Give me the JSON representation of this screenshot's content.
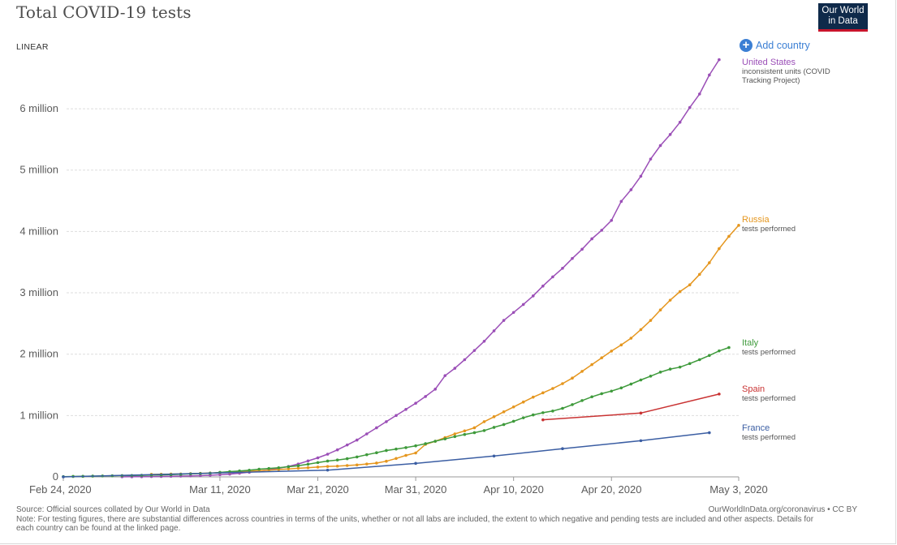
{
  "title": "Total COVID-19 tests",
  "logo": {
    "line1": "Our World",
    "line2": "in Data"
  },
  "scale_toggle": "LINEAR",
  "add_country": "Add country",
  "footer": {
    "source": "Source: Official sources collated by Our World in Data",
    "note": "Note: For testing figures, there are substantial differences across countries in terms of the units, whether or not all labs are included, the extent to which negative and pending tests are included and other aspects. Details for each country can be found at the linked page.",
    "credit": "OurWorldInData.org/coronavirus • CC BY"
  },
  "colors": {
    "grid": "#dddddd",
    "axis": "#999999",
    "text": "#5b5b5b",
    "background": "#ffffff"
  },
  "chart_data": {
    "type": "line",
    "title": "Total COVID-19 tests",
    "xlabel": "",
    "ylabel": "",
    "x_type": "date",
    "x_range": [
      "2020-02-24",
      "2020-05-03"
    ],
    "ylim": [
      0,
      6900000
    ],
    "x_ticks": [
      {
        "date": "2020-02-24",
        "label": "Feb 24, 2020"
      },
      {
        "date": "2020-03-11",
        "label": "Mar 11, 2020"
      },
      {
        "date": "2020-03-21",
        "label": "Mar 21, 2020"
      },
      {
        "date": "2020-03-31",
        "label": "Mar 31, 2020"
      },
      {
        "date": "2020-04-10",
        "label": "Apr 10, 2020"
      },
      {
        "date": "2020-04-20",
        "label": "Apr 20, 2020"
      },
      {
        "date": "2020-05-03",
        "label": "May 3, 2020"
      }
    ],
    "y_ticks": [
      {
        "value": 0,
        "label": "0"
      },
      {
        "value": 1000000,
        "label": "1 million"
      },
      {
        "value": 2000000,
        "label": "2 million"
      },
      {
        "value": 3000000,
        "label": "3 million"
      },
      {
        "value": 4000000,
        "label": "4 million"
      },
      {
        "value": 5000000,
        "label": "5 million"
      },
      {
        "value": 6000000,
        "label": "6 million"
      }
    ],
    "grid": true,
    "legend": "right-inline",
    "series": [
      {
        "name": "United States",
        "subtitle": "inconsistent units (COVID Tracking Project)",
        "color": "#9b4fb7",
        "points": [
          [
            "2020-03-01",
            1000
          ],
          [
            "2020-03-02",
            2000
          ],
          [
            "2020-03-03",
            3000
          ],
          [
            "2020-03-04",
            5000
          ],
          [
            "2020-03-05",
            7000
          ],
          [
            "2020-03-06",
            10000
          ],
          [
            "2020-03-07",
            13000
          ],
          [
            "2020-03-08",
            16000
          ],
          [
            "2020-03-09",
            20000
          ],
          [
            "2020-03-10",
            27000
          ],
          [
            "2020-03-11",
            35000
          ],
          [
            "2020-03-12",
            45000
          ],
          [
            "2020-03-13",
            60000
          ],
          [
            "2020-03-14",
            75000
          ],
          [
            "2020-03-15",
            95000
          ],
          [
            "2020-03-16",
            115000
          ],
          [
            "2020-03-17",
            140000
          ],
          [
            "2020-03-18",
            170000
          ],
          [
            "2020-03-19",
            210000
          ],
          [
            "2020-03-20",
            260000
          ],
          [
            "2020-03-21",
            310000
          ],
          [
            "2020-03-22",
            370000
          ],
          [
            "2020-03-23",
            440000
          ],
          [
            "2020-03-24",
            520000
          ],
          [
            "2020-03-25",
            600000
          ],
          [
            "2020-03-26",
            700000
          ],
          [
            "2020-03-27",
            800000
          ],
          [
            "2020-03-28",
            900000
          ],
          [
            "2020-03-29",
            1000000
          ],
          [
            "2020-03-30",
            1100000
          ],
          [
            "2020-03-31",
            1200000
          ],
          [
            "2020-04-01",
            1310000
          ],
          [
            "2020-04-02",
            1430000
          ],
          [
            "2020-04-03",
            1650000
          ],
          [
            "2020-04-04",
            1770000
          ],
          [
            "2020-04-05",
            1910000
          ],
          [
            "2020-04-06",
            2060000
          ],
          [
            "2020-04-07",
            2210000
          ],
          [
            "2020-04-08",
            2380000
          ],
          [
            "2020-04-09",
            2550000
          ],
          [
            "2020-04-10",
            2680000
          ],
          [
            "2020-04-11",
            2810000
          ],
          [
            "2020-04-12",
            2950000
          ],
          [
            "2020-04-13",
            3110000
          ],
          [
            "2020-04-14",
            3260000
          ],
          [
            "2020-04-15",
            3400000
          ],
          [
            "2020-04-16",
            3560000
          ],
          [
            "2020-04-17",
            3710000
          ],
          [
            "2020-04-18",
            3880000
          ],
          [
            "2020-04-19",
            4020000
          ],
          [
            "2020-04-20",
            4180000
          ],
          [
            "2020-04-21",
            4490000
          ],
          [
            "2020-04-22",
            4680000
          ],
          [
            "2020-04-23",
            4900000
          ],
          [
            "2020-04-24",
            5180000
          ],
          [
            "2020-04-25",
            5400000
          ],
          [
            "2020-04-26",
            5580000
          ],
          [
            "2020-04-27",
            5780000
          ],
          [
            "2020-04-28",
            6020000
          ],
          [
            "2020-04-29",
            6240000
          ],
          [
            "2020-04-30",
            6550000
          ],
          [
            "2020-05-01",
            6800000
          ]
        ]
      },
      {
        "name": "Russia",
        "subtitle": "tests performed",
        "color": "#e5961e",
        "points": [
          [
            "2020-03-04",
            40000
          ],
          [
            "2020-03-05",
            42000
          ],
          [
            "2020-03-06",
            45000
          ],
          [
            "2020-03-07",
            48000
          ],
          [
            "2020-03-08",
            52000
          ],
          [
            "2020-03-09",
            57000
          ],
          [
            "2020-03-10",
            62000
          ],
          [
            "2020-03-11",
            68000
          ],
          [
            "2020-03-12",
            75000
          ],
          [
            "2020-03-13",
            83000
          ],
          [
            "2020-03-14",
            92000
          ],
          [
            "2020-03-15",
            100000
          ],
          [
            "2020-03-16",
            110000
          ],
          [
            "2020-03-17",
            120000
          ],
          [
            "2020-03-18",
            130000
          ],
          [
            "2020-03-19",
            140000
          ],
          [
            "2020-03-20",
            150000
          ],
          [
            "2020-03-21",
            160000
          ],
          [
            "2020-03-22",
            170000
          ],
          [
            "2020-03-23",
            175000
          ],
          [
            "2020-03-24",
            185000
          ],
          [
            "2020-03-25",
            195000
          ],
          [
            "2020-03-26",
            210000
          ],
          [
            "2020-03-27",
            225000
          ],
          [
            "2020-03-28",
            255000
          ],
          [
            "2020-03-29",
            300000
          ],
          [
            "2020-03-30",
            350000
          ],
          [
            "2020-03-31",
            390000
          ],
          [
            "2020-04-01",
            530000
          ],
          [
            "2020-04-02",
            580000
          ],
          [
            "2020-04-03",
            640000
          ],
          [
            "2020-04-04",
            700000
          ],
          [
            "2020-04-05",
            750000
          ],
          [
            "2020-04-06",
            800000
          ],
          [
            "2020-04-07",
            900000
          ],
          [
            "2020-04-08",
            980000
          ],
          [
            "2020-04-09",
            1060000
          ],
          [
            "2020-04-10",
            1140000
          ],
          [
            "2020-04-11",
            1220000
          ],
          [
            "2020-04-12",
            1300000
          ],
          [
            "2020-04-13",
            1370000
          ],
          [
            "2020-04-14",
            1440000
          ],
          [
            "2020-04-15",
            1520000
          ],
          [
            "2020-04-16",
            1610000
          ],
          [
            "2020-04-17",
            1720000
          ],
          [
            "2020-04-18",
            1830000
          ],
          [
            "2020-04-19",
            1940000
          ],
          [
            "2020-04-20",
            2050000
          ],
          [
            "2020-04-21",
            2150000
          ],
          [
            "2020-04-22",
            2260000
          ],
          [
            "2020-04-23",
            2400000
          ],
          [
            "2020-04-24",
            2550000
          ],
          [
            "2020-04-25",
            2720000
          ],
          [
            "2020-04-26",
            2880000
          ],
          [
            "2020-04-27",
            3020000
          ],
          [
            "2020-04-28",
            3130000
          ],
          [
            "2020-04-29",
            3300000
          ],
          [
            "2020-04-30",
            3490000
          ],
          [
            "2020-05-01",
            3720000
          ],
          [
            "2020-05-02",
            3920000
          ],
          [
            "2020-05-03",
            4100000
          ]
        ]
      },
      {
        "name": "Italy",
        "subtitle": "tests performed",
        "color": "#3e9a3b",
        "points": [
          [
            "2020-02-24",
            4000
          ],
          [
            "2020-02-25",
            7000
          ],
          [
            "2020-02-26",
            9000
          ],
          [
            "2020-02-27",
            12000
          ],
          [
            "2020-02-28",
            15000
          ],
          [
            "2020-02-29",
            18000
          ],
          [
            "2020-03-01",
            21000
          ],
          [
            "2020-03-02",
            23000
          ],
          [
            "2020-03-03",
            25000
          ],
          [
            "2020-03-04",
            29000
          ],
          [
            "2020-03-05",
            32000
          ],
          [
            "2020-03-06",
            36000
          ],
          [
            "2020-03-07",
            42000
          ],
          [
            "2020-03-08",
            49000
          ],
          [
            "2020-03-09",
            54000
          ],
          [
            "2020-03-10",
            60000
          ],
          [
            "2020-03-11",
            73000
          ],
          [
            "2020-03-12",
            86000
          ],
          [
            "2020-03-13",
            97000
          ],
          [
            "2020-03-14",
            109000
          ],
          [
            "2020-03-15",
            125000
          ],
          [
            "2020-03-16",
            137000
          ],
          [
            "2020-03-17",
            148000
          ],
          [
            "2020-03-18",
            165000
          ],
          [
            "2020-03-19",
            182000
          ],
          [
            "2020-03-20",
            206000
          ],
          [
            "2020-03-21",
            233000
          ],
          [
            "2020-03-22",
            258000
          ],
          [
            "2020-03-23",
            275000
          ],
          [
            "2020-03-24",
            296000
          ],
          [
            "2020-03-25",
            325000
          ],
          [
            "2020-03-26",
            361000
          ],
          [
            "2020-03-27",
            394000
          ],
          [
            "2020-03-28",
            430000
          ],
          [
            "2020-03-29",
            454000
          ],
          [
            "2020-03-30",
            477000
          ],
          [
            "2020-03-31",
            506000
          ],
          [
            "2020-04-01",
            541000
          ],
          [
            "2020-04-02",
            581000
          ],
          [
            "2020-04-03",
            619000
          ],
          [
            "2020-04-04",
            657000
          ],
          [
            "2020-04-05",
            691000
          ],
          [
            "2020-04-06",
            721000
          ],
          [
            "2020-04-07",
            755000
          ],
          [
            "2020-04-08",
            807000
          ],
          [
            "2020-04-09",
            853000
          ],
          [
            "2020-04-10",
            906000
          ],
          [
            "2020-04-11",
            963000
          ],
          [
            "2020-04-12",
            1010000
          ],
          [
            "2020-04-13",
            1046000
          ],
          [
            "2020-04-14",
            1073000
          ],
          [
            "2020-04-15",
            1117000
          ],
          [
            "2020-04-16",
            1178000
          ],
          [
            "2020-04-17",
            1244000
          ],
          [
            "2020-04-18",
            1305000
          ],
          [
            "2020-04-19",
            1356000
          ],
          [
            "2020-04-20",
            1398000
          ],
          [
            "2020-04-21",
            1450000
          ],
          [
            "2020-04-22",
            1513000
          ],
          [
            "2020-04-23",
            1579000
          ],
          [
            "2020-04-24",
            1642000
          ],
          [
            "2020-04-25",
            1707000
          ],
          [
            "2020-04-26",
            1757000
          ],
          [
            "2020-04-27",
            1789000
          ],
          [
            "2020-04-28",
            1846000
          ],
          [
            "2020-04-29",
            1910000
          ],
          [
            "2020-04-30",
            1979000
          ],
          [
            "2020-05-01",
            2053000
          ],
          [
            "2020-05-02",
            2108000
          ]
        ]
      },
      {
        "name": "Spain",
        "subtitle": "tests performed",
        "color": "#c93333",
        "points": [
          [
            "2020-04-13",
            930000
          ],
          [
            "2020-04-23",
            1040000
          ],
          [
            "2020-05-01",
            1350000
          ]
        ]
      },
      {
        "name": "France",
        "subtitle": "tests performed",
        "color": "#3b5ea3",
        "points": [
          [
            "2020-02-24",
            0
          ],
          [
            "2020-03-22",
            110000
          ],
          [
            "2020-03-31",
            220000
          ],
          [
            "2020-04-08",
            340000
          ],
          [
            "2020-04-15",
            460000
          ],
          [
            "2020-04-23",
            590000
          ],
          [
            "2020-04-30",
            720000
          ]
        ]
      }
    ]
  }
}
